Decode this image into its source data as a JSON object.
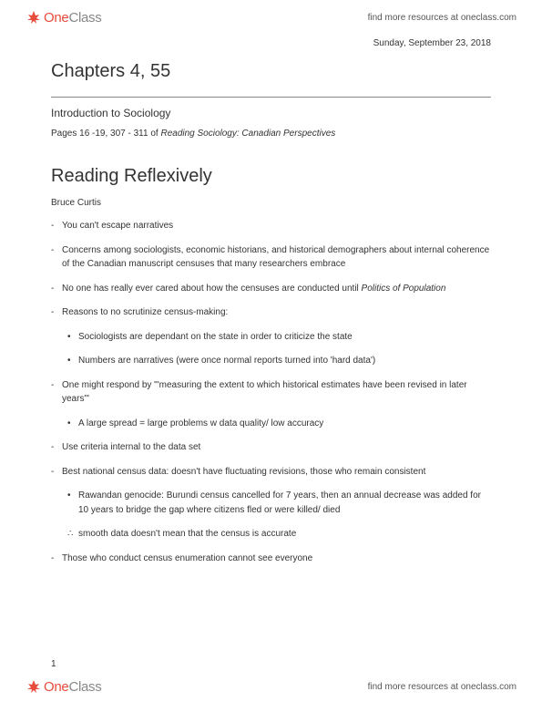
{
  "header": {
    "logo_one": "One",
    "logo_class": "Class",
    "link_text": "find more resources at oneclass.com"
  },
  "content": {
    "date": "Sunday, September 23, 2018",
    "chapter_title": "Chapters 4, 55",
    "subtitle": "Introduction to Sociology",
    "pages_prefix": "Pages 16 -19, 307 - 311 of ",
    "pages_italic": "Reading Sociology: Canadian Perspectives",
    "section_title": "Reading Reflexively",
    "author": "Bruce Curtis",
    "bullets": [
      {
        "text": "You can't escape narratives"
      },
      {
        "text": "Concerns among sociologists, economic historians, and historical demographers about internal coherence of the Canadian manuscript censuses that many researchers embrace"
      },
      {
        "text_pre": "No one has really ever cared about how the censuses are conducted until ",
        "italic": "Politics of Population"
      },
      {
        "text": "Reasons to no scrutinize census-making:",
        "subs": [
          {
            "text": "Sociologists are dependant on the state in order to criticize the state"
          },
          {
            "text": "Numbers are narratives (were once normal reports turned into 'hard data')"
          }
        ]
      },
      {
        "text": "One might respond by \"'measuring the extent to which historical estimates have been revised in later years'\"",
        "subs": [
          {
            "text": "A large spread = large problems w data quality/ low accuracy"
          }
        ]
      },
      {
        "text": "Use criteria internal to the data set"
      },
      {
        "text": "Best national census data: doesn't have fluctuating revisions, those who remain consistent",
        "subs": [
          {
            "text": "Rawandan genocide: Burundi census cancelled for 7 years, then an annual decrease was added for 10 years to bridge the gap where citizens fled or were killed/ died"
          },
          {
            "text": "smooth data doesn't mean that the census is accurate",
            "therefore": true
          }
        ]
      },
      {
        "text": "Those who conduct census enumeration cannot see everyone"
      }
    ]
  },
  "page_number": "1",
  "footer": {
    "logo_one": "One",
    "logo_class": "Class",
    "link_text": "find more resources at oneclass.com"
  },
  "colors": {
    "logo_red": "#e74c3c",
    "logo_gray": "#888888",
    "text": "#333333",
    "bg": "#ffffff"
  }
}
